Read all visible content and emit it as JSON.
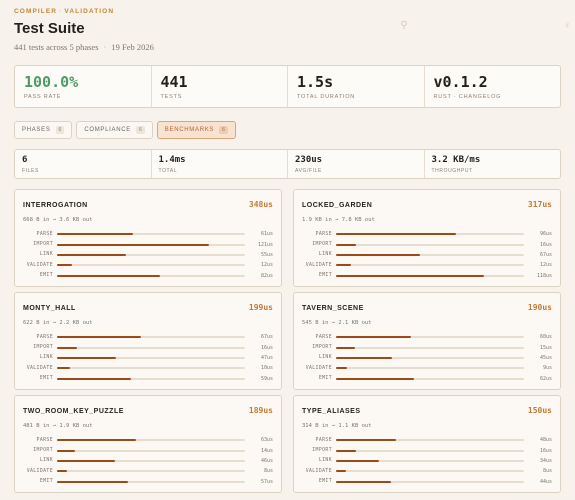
{
  "breadcrumb": [
    "COMPILER",
    "VALIDATION"
  ],
  "title": "Test Suite",
  "subtitle": {
    "tests": "441 tests across 5 phases",
    "date": "19 Feb 2026"
  },
  "icons": [
    "pin-icon",
    "person-icon"
  ],
  "summary": [
    {
      "value": "100.0%",
      "label": "PASS RATE",
      "accent": "#4f9a68"
    },
    {
      "value": "441",
      "label": "TESTS"
    },
    {
      "value": "1.5s",
      "label": "TOTAL DURATION"
    },
    {
      "value": "v0.1.2",
      "label": "RUST",
      "link": "CHANGELOG"
    }
  ],
  "tabs": [
    {
      "label": "PHASES",
      "count": "6",
      "active": false
    },
    {
      "label": "COMPLIANCE",
      "count": "6",
      "active": false
    },
    {
      "label": "BENCHMARKS",
      "count": "6",
      "active": true
    }
  ],
  "bench_stats": [
    {
      "value": "6",
      "label": "FILES"
    },
    {
      "value": "1.4ms",
      "label": "TOTAL"
    },
    {
      "value": "230us",
      "label": "AVG/FILE"
    },
    {
      "value": "3.2 KB/ms",
      "label": "THROUGHPUT"
    }
  ],
  "colors": {
    "accent": "#c37a34",
    "bar": "#9c4a18",
    "pass": "#4f9a68",
    "active_tab": "#f8e3d0"
  },
  "benchmarks": [
    {
      "name": "INTERROGATION",
      "time": "348us",
      "io": "668 B in → 3.6 KB out",
      "phases": [
        {
          "label": "PARSE",
          "value": "61us",
          "us": 61
        },
        {
          "label": "IMPORT",
          "value": "121us",
          "us": 121
        },
        {
          "label": "LINK",
          "value": "55us",
          "us": 55
        },
        {
          "label": "VALIDATE",
          "value": "12us",
          "us": 12
        },
        {
          "label": "EMIT",
          "value": "82us",
          "us": 82
        }
      ]
    },
    {
      "name": "LOCKED_GARDEN",
      "time": "317us",
      "io": "1.9 KB in → 7.8 KB out",
      "phases": [
        {
          "label": "PARSE",
          "value": "96us",
          "us": 96
        },
        {
          "label": "IMPORT",
          "value": "16us",
          "us": 16
        },
        {
          "label": "LINK",
          "value": "67us",
          "us": 67
        },
        {
          "label": "VALIDATE",
          "value": "12us",
          "us": 12
        },
        {
          "label": "EMIT",
          "value": "118us",
          "us": 118
        }
      ]
    },
    {
      "name": "MONTY_HALL",
      "time": "199us",
      "io": "622 B in → 2.2 KB out",
      "phases": [
        {
          "label": "PARSE",
          "value": "67us",
          "us": 67
        },
        {
          "label": "IMPORT",
          "value": "16us",
          "us": 16
        },
        {
          "label": "LINK",
          "value": "47us",
          "us": 47
        },
        {
          "label": "VALIDATE",
          "value": "10us",
          "us": 10
        },
        {
          "label": "EMIT",
          "value": "59us",
          "us": 59
        }
      ]
    },
    {
      "name": "TAVERN_SCENE",
      "time": "190us",
      "io": "545 B in → 2.1 KB out",
      "phases": [
        {
          "label": "PARSE",
          "value": "60us",
          "us": 60
        },
        {
          "label": "IMPORT",
          "value": "15us",
          "us": 15
        },
        {
          "label": "LINK",
          "value": "45us",
          "us": 45
        },
        {
          "label": "VALIDATE",
          "value": "9us",
          "us": 9
        },
        {
          "label": "EMIT",
          "value": "62us",
          "us": 62
        }
      ]
    },
    {
      "name": "TWO_ROOM_KEY_PUZZLE",
      "time": "189us",
      "io": "481 B in → 1.9 KB out",
      "phases": [
        {
          "label": "PARSE",
          "value": "63us",
          "us": 63
        },
        {
          "label": "IMPORT",
          "value": "14us",
          "us": 14
        },
        {
          "label": "LINK",
          "value": "46us",
          "us": 46
        },
        {
          "label": "VALIDATE",
          "value": "8us",
          "us": 8
        },
        {
          "label": "EMIT",
          "value": "57us",
          "us": 57
        }
      ]
    },
    {
      "name": "TYPE_ALIASES",
      "time": "150us",
      "io": "314 B in → 1.1 KB out",
      "phases": [
        {
          "label": "PARSE",
          "value": "48us",
          "us": 48
        },
        {
          "label": "IMPORT",
          "value": "16us",
          "us": 16
        },
        {
          "label": "LINK",
          "value": "34us",
          "us": 34
        },
        {
          "label": "VALIDATE",
          "value": "8us",
          "us": 8
        },
        {
          "label": "EMIT",
          "value": "44us",
          "us": 44
        }
      ]
    }
  ]
}
